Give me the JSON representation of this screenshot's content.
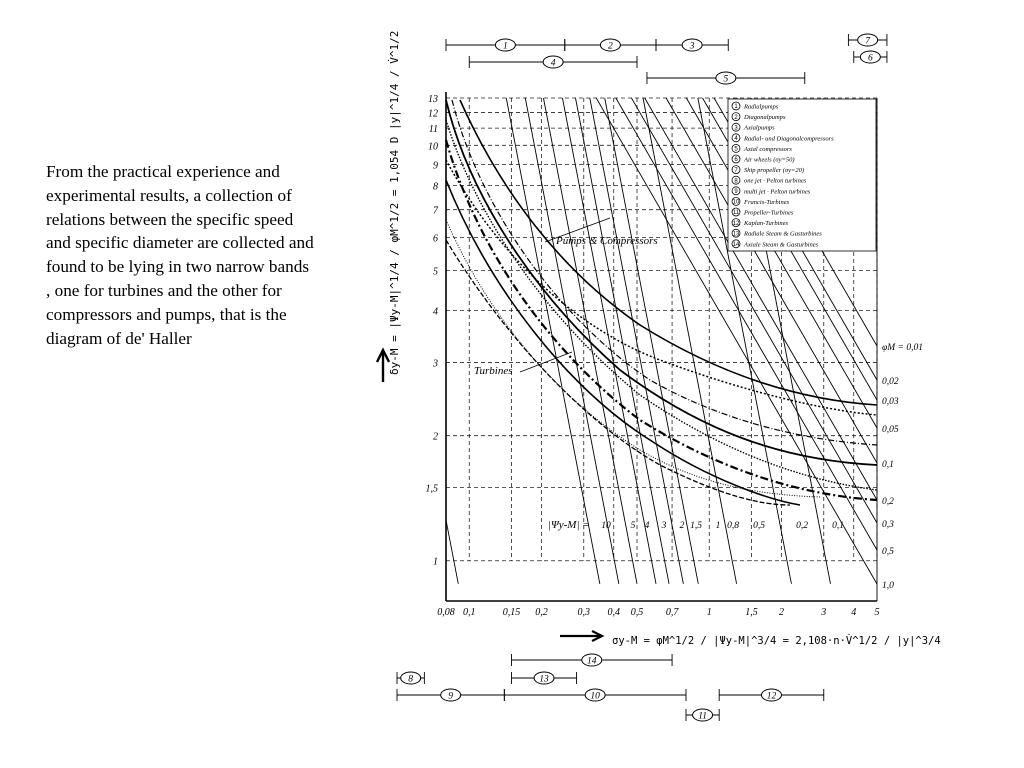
{
  "description": "From the practical experience and experimental results, a collection of relations between the specific speed and specific diameter are collected and found to be lying in two narrow bands , one for turbines and the other for compressors and pumps, that is the diagram of de' Haller",
  "chart_data": {
    "type": "line",
    "title": "",
    "xlabel": "σy-M = φM^1/2 / |Ψy-M|^3/4 = 2,108·n·V̇^1/2 / |y|^3/4",
    "ylabel": "δy-M = |Ψy-M|^1/4 / φM^1/2 = 1,054 D |y|^1/4 / V̇^1/2",
    "x_scale": "log",
    "y_scale": "log",
    "xlim": [
      0.08,
      5
    ],
    "ylim": [
      0.8,
      13
    ],
    "x_ticks": [
      "0,08",
      "0,1",
      "0,15",
      "0,2",
      "0,3",
      "0,4",
      "0,5",
      "0,7",
      "1",
      "1,5",
      "2",
      "3",
      "4",
      "5"
    ],
    "x_tick_values": [
      0.08,
      0.1,
      0.15,
      0.2,
      0.3,
      0.4,
      0.5,
      0.7,
      1,
      1.5,
      2,
      3,
      4,
      5
    ],
    "y_ticks": [
      "1",
      "1,5",
      "2",
      "3",
      "4",
      "5",
      "6",
      "7",
      "8",
      "9",
      "10",
      "11",
      "12",
      "13"
    ],
    "y_tick_values": [
      1,
      1.5,
      2,
      3,
      4,
      5,
      6,
      7,
      8,
      9,
      10,
      11,
      12,
      13
    ],
    "phi_m_label": "φM = 0,01",
    "phi_m_values": [
      "0,01",
      "0,02",
      "0,03",
      "0,05",
      "0,1",
      "0,2",
      "0,3",
      "0,5",
      "1,0"
    ],
    "psi_label": "|Ψy-M| =",
    "psi_values": [
      "10",
      "5",
      "4",
      "3",
      "2",
      "1,5",
      "1",
      "0,8",
      "0,5",
      "0,2",
      "0,1"
    ],
    "band_labels": {
      "pumps": "Pumps & Compressors",
      "turbines": "Turbines"
    },
    "legend": [
      {
        "num": "1",
        "text": "Radialpumps"
      },
      {
        "num": "2",
        "text": "Diagonalpumps"
      },
      {
        "num": "3",
        "text": "Axialpumps"
      },
      {
        "num": "4",
        "text": "Radial- und Diagonalcompressors"
      },
      {
        "num": "5",
        "text": "Axial compressors"
      },
      {
        "num": "6",
        "text": "Air wheels (σy=50)"
      },
      {
        "num": "7",
        "text": "Ship propeller (σy=20)"
      },
      {
        "num": "8",
        "text": "one jet · Pelton turbines"
      },
      {
        "num": "9",
        "text": "multi jet · Pelton turbines"
      },
      {
        "num": "10",
        "text": "Francis-Turbines"
      },
      {
        "num": "11",
        "text": "Propeller-Turbines"
      },
      {
        "num": "12",
        "text": "Kaplan-Turbines"
      },
      {
        "num": "13",
        "text": "Radiale Steam & Gasturbines"
      },
      {
        "num": "14",
        "text": "Axiale Steam & Gasturbines"
      }
    ],
    "top_ranges": [
      {
        "num": "1",
        "from": 0.08,
        "to": 0.25
      },
      {
        "num": "2",
        "from": 0.25,
        "to": 0.6
      },
      {
        "num": "3",
        "from": 0.6,
        "to": 1.2
      },
      {
        "num": "4",
        "from": 0.1,
        "to": 0.5
      },
      {
        "num": "5",
        "from": 0.55,
        "to": 2.5
      },
      {
        "num": "6",
        "from": 4.0,
        "to": 5.5
      },
      {
        "num": "7",
        "from": 3.8,
        "to": 5.5
      }
    ],
    "bottom_ranges": [
      {
        "num": "8",
        "from": 0.05,
        "to": 0.065
      },
      {
        "num": "9",
        "from": 0.05,
        "to": 0.14
      },
      {
        "num": "10",
        "from": 0.14,
        "to": 0.8
      },
      {
        "num": "11",
        "from": 0.8,
        "to": 1.1
      },
      {
        "num": "12",
        "from": 1.1,
        "to": 3.0
      },
      {
        "num": "13",
        "from": 0.15,
        "to": 0.28
      },
      {
        "num": "14",
        "from": 0.15,
        "to": 0.7
      }
    ]
  }
}
